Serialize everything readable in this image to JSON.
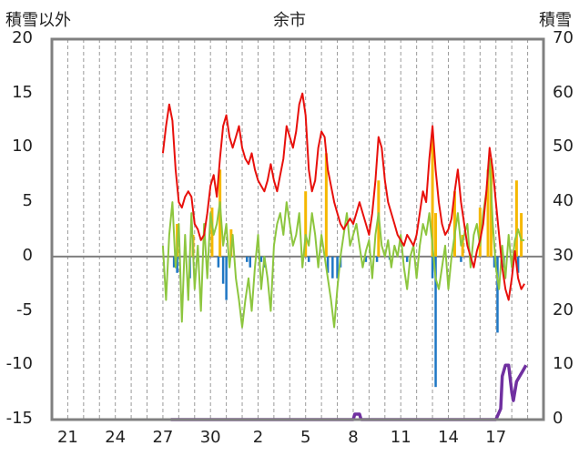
{
  "chart_data": {
    "type": "line",
    "title": "余市",
    "left_axis_label": "積雪以外",
    "right_axis_label": "積雪",
    "left_ylim": [
      -15,
      20
    ],
    "right_ylim": [
      0,
      70
    ],
    "left_ticks": [
      "20",
      "15",
      "10",
      "5",
      "0",
      "-5",
      "-10",
      "-15"
    ],
    "right_ticks": [
      "70",
      "60",
      "50",
      "40",
      "30",
      "20",
      "10",
      "0"
    ],
    "x_ticks": [
      "21",
      "24",
      "27",
      "30",
      "2",
      "5",
      "8",
      "11",
      "14",
      "17"
    ],
    "x_tick_day_index": [
      1,
      4,
      7,
      10,
      13,
      16,
      19,
      22,
      25,
      28
    ],
    "x_range_days": [
      0,
      31
    ],
    "grid": "vertical-dashed",
    "legend": "none",
    "colors": {
      "temperature": "#e8100c",
      "wind": "#f5b800",
      "precipitation": "#1f77c4",
      "humidity_change": "#8dc63f",
      "snow_depth": "#7030a0"
    },
    "series": [
      {
        "key": "temperature",
        "axis": "left",
        "points": [
          [
            7.0,
            9.5
          ],
          [
            7.2,
            12.0
          ],
          [
            7.4,
            14.0
          ],
          [
            7.6,
            12.5
          ],
          [
            7.8,
            8.0
          ],
          [
            8.0,
            5.0
          ],
          [
            8.2,
            4.5
          ],
          [
            8.4,
            5.5
          ],
          [
            8.6,
            6.0
          ],
          [
            8.8,
            5.5
          ],
          [
            9.0,
            3.0
          ],
          [
            9.2,
            2.5
          ],
          [
            9.4,
            1.5
          ],
          [
            9.6,
            2.0
          ],
          [
            9.8,
            4.0
          ],
          [
            10.0,
            6.5
          ],
          [
            10.2,
            7.5
          ],
          [
            10.4,
            5.5
          ],
          [
            10.6,
            9.0
          ],
          [
            10.8,
            12.0
          ],
          [
            11.0,
            13.0
          ],
          [
            11.2,
            11.0
          ],
          [
            11.4,
            10.0
          ],
          [
            11.6,
            11.0
          ],
          [
            11.8,
            12.0
          ],
          [
            12.0,
            10.0
          ],
          [
            12.2,
            9.0
          ],
          [
            12.4,
            8.5
          ],
          [
            12.6,
            9.5
          ],
          [
            12.8,
            8.0
          ],
          [
            13.0,
            7.0
          ],
          [
            13.2,
            6.5
          ],
          [
            13.4,
            6.0
          ],
          [
            13.6,
            7.0
          ],
          [
            13.8,
            8.5
          ],
          [
            14.0,
            7.0
          ],
          [
            14.2,
            6.0
          ],
          [
            14.4,
            7.5
          ],
          [
            14.6,
            9.0
          ],
          [
            14.8,
            12.0
          ],
          [
            15.0,
            11.0
          ],
          [
            15.2,
            10.0
          ],
          [
            15.4,
            11.5
          ],
          [
            15.6,
            14.0
          ],
          [
            15.8,
            15.0
          ],
          [
            16.0,
            13.0
          ],
          [
            16.2,
            8.0
          ],
          [
            16.4,
            6.0
          ],
          [
            16.6,
            7.0
          ],
          [
            16.8,
            10.0
          ],
          [
            17.0,
            11.5
          ],
          [
            17.2,
            11.0
          ],
          [
            17.4,
            8.0
          ],
          [
            17.6,
            6.5
          ],
          [
            17.8,
            5.0
          ],
          [
            18.0,
            4.0
          ],
          [
            18.2,
            3.0
          ],
          [
            18.4,
            2.5
          ],
          [
            18.6,
            3.0
          ],
          [
            18.8,
            3.5
          ],
          [
            19.0,
            3.0
          ],
          [
            19.2,
            4.0
          ],
          [
            19.4,
            5.0
          ],
          [
            19.6,
            4.0
          ],
          [
            19.8,
            3.0
          ],
          [
            20.0,
            2.0
          ],
          [
            20.2,
            4.0
          ],
          [
            20.4,
            7.0
          ],
          [
            20.6,
            11.0
          ],
          [
            20.8,
            10.0
          ],
          [
            21.0,
            7.0
          ],
          [
            21.2,
            5.0
          ],
          [
            21.4,
            4.0
          ],
          [
            21.6,
            3.0
          ],
          [
            21.8,
            2.0
          ],
          [
            22.0,
            1.5
          ],
          [
            22.2,
            1.0
          ],
          [
            22.4,
            2.0
          ],
          [
            22.6,
            1.5
          ],
          [
            22.8,
            1.0
          ],
          [
            23.0,
            2.0
          ],
          [
            23.2,
            4.0
          ],
          [
            23.4,
            6.0
          ],
          [
            23.6,
            5.0
          ],
          [
            23.8,
            9.0
          ],
          [
            24.0,
            12.0
          ],
          [
            24.2,
            8.0
          ],
          [
            24.4,
            5.0
          ],
          [
            24.6,
            3.0
          ],
          [
            24.8,
            2.0
          ],
          [
            25.0,
            2.5
          ],
          [
            25.2,
            3.5
          ],
          [
            25.4,
            6.0
          ],
          [
            25.6,
            8.0
          ],
          [
            25.8,
            5.0
          ],
          [
            26.0,
            3.0
          ],
          [
            26.2,
            1.0
          ],
          [
            26.4,
            0.0
          ],
          [
            26.6,
            -1.0
          ],
          [
            26.8,
            0.5
          ],
          [
            27.0,
            1.5
          ],
          [
            27.2,
            3.0
          ],
          [
            27.4,
            6.0
          ],
          [
            27.6,
            10.0
          ],
          [
            27.8,
            8.0
          ],
          [
            28.0,
            5.0
          ],
          [
            28.2,
            2.0
          ],
          [
            28.4,
            -1.0
          ],
          [
            28.6,
            -3.0
          ],
          [
            28.8,
            -4.0
          ],
          [
            29.0,
            -2.0
          ],
          [
            29.2,
            0.5
          ],
          [
            29.4,
            -2.0
          ],
          [
            29.6,
            -3.0
          ],
          [
            29.8,
            -2.5
          ]
        ]
      },
      {
        "key": "humidity_change",
        "axis": "left",
        "points": [
          [
            7.0,
            1.0
          ],
          [
            7.2,
            -4.0
          ],
          [
            7.4,
            2.0
          ],
          [
            7.6,
            5.0
          ],
          [
            7.8,
            -1.0
          ],
          [
            8.0,
            3.0
          ],
          [
            8.2,
            -6.0
          ],
          [
            8.4,
            2.0
          ],
          [
            8.6,
            -4.0
          ],
          [
            8.8,
            4.0
          ],
          [
            9.0,
            -3.0
          ],
          [
            9.2,
            1.0
          ],
          [
            9.4,
            -5.0
          ],
          [
            9.6,
            3.0
          ],
          [
            9.8,
            -2.0
          ],
          [
            10.0,
            4.0
          ],
          [
            10.2,
            2.0
          ],
          [
            10.4,
            3.0
          ],
          [
            10.6,
            5.0
          ],
          [
            10.8,
            1.0
          ],
          [
            11.0,
            3.0
          ],
          [
            11.2,
            -1.0
          ],
          [
            11.4,
            2.0
          ],
          [
            11.6,
            -2.0
          ],
          [
            11.8,
            -4.0
          ],
          [
            12.0,
            -6.5
          ],
          [
            12.2,
            -4.0
          ],
          [
            12.4,
            -2.0
          ],
          [
            12.6,
            -5.0
          ],
          [
            12.8,
            -1.0
          ],
          [
            13.0,
            2.0
          ],
          [
            13.2,
            -3.0
          ],
          [
            13.4,
            0.0
          ],
          [
            13.6,
            -2.0
          ],
          [
            13.8,
            -5.0
          ],
          [
            14.0,
            1.0
          ],
          [
            14.2,
            3.0
          ],
          [
            14.4,
            4.0
          ],
          [
            14.6,
            2.0
          ],
          [
            14.8,
            5.0
          ],
          [
            15.0,
            3.0
          ],
          [
            15.2,
            1.0
          ],
          [
            15.4,
            2.0
          ],
          [
            15.6,
            4.0
          ],
          [
            15.8,
            -1.0
          ],
          [
            16.0,
            2.0
          ],
          [
            16.2,
            1.0
          ],
          [
            16.4,
            4.0
          ],
          [
            16.6,
            2.0
          ],
          [
            16.8,
            -1.0
          ],
          [
            17.0,
            2.0
          ],
          [
            17.2,
            0.0
          ],
          [
            17.4,
            -2.0
          ],
          [
            17.6,
            -4.0
          ],
          [
            17.8,
            -6.5
          ],
          [
            18.0,
            -3.0
          ],
          [
            18.2,
            0.0
          ],
          [
            18.4,
            2.0
          ],
          [
            18.6,
            4.0
          ],
          [
            18.8,
            1.0
          ],
          [
            19.0,
            2.0
          ],
          [
            19.2,
            3.0
          ],
          [
            19.4,
            1.0
          ],
          [
            19.6,
            -1.0
          ],
          [
            19.8,
            0.5
          ],
          [
            20.0,
            1.5
          ],
          [
            20.2,
            -2.0
          ],
          [
            20.4,
            2.0
          ],
          [
            20.6,
            4.0
          ],
          [
            20.8,
            1.0
          ],
          [
            21.0,
            0.0
          ],
          [
            21.2,
            1.5
          ],
          [
            21.4,
            -1.0
          ],
          [
            21.6,
            1.0
          ],
          [
            21.8,
            0.0
          ],
          [
            22.0,
            2.0
          ],
          [
            22.2,
            -1.0
          ],
          [
            22.4,
            -3.0
          ],
          [
            22.6,
            0.0
          ],
          [
            22.8,
            1.0
          ],
          [
            23.0,
            -2.0
          ],
          [
            23.2,
            1.0
          ],
          [
            23.4,
            3.0
          ],
          [
            23.6,
            2.0
          ],
          [
            23.8,
            4.0
          ],
          [
            24.0,
            1.0
          ],
          [
            24.2,
            -2.0
          ],
          [
            24.4,
            -3.0
          ],
          [
            24.6,
            -1.0
          ],
          [
            24.8,
            1.0
          ],
          [
            25.0,
            -3.0
          ],
          [
            25.2,
            0.0
          ],
          [
            25.4,
            2.0
          ],
          [
            25.6,
            4.0
          ],
          [
            25.8,
            1.0
          ],
          [
            26.0,
            2.0
          ],
          [
            26.2,
            3.0
          ],
          [
            26.4,
            -1.0
          ],
          [
            26.6,
            2.0
          ],
          [
            26.8,
            3.0
          ],
          [
            27.0,
            1.0
          ],
          [
            27.2,
            4.0
          ],
          [
            27.4,
            6.0
          ],
          [
            27.6,
            9.0
          ],
          [
            27.8,
            3.0
          ],
          [
            28.0,
            -1.0
          ],
          [
            28.2,
            -3.0
          ],
          [
            28.4,
            1.0
          ],
          [
            28.6,
            -2.0
          ],
          [
            28.8,
            2.0
          ],
          [
            29.0,
            -1.0
          ],
          [
            29.2,
            1.5
          ],
          [
            29.4,
            2.5
          ],
          [
            29.6,
            1.5
          ],
          [
            29.8,
            1.5
          ]
        ]
      },
      {
        "key": "wind",
        "axis": "left",
        "bars": [
          [
            7.9,
            3.0
          ],
          [
            8.9,
            2.0
          ],
          [
            10.1,
            4.5
          ],
          [
            10.6,
            8.0
          ],
          [
            11.3,
            2.5
          ],
          [
            16.0,
            6.0
          ],
          [
            17.3,
            9.5
          ],
          [
            20.6,
            7.0
          ],
          [
            24.0,
            11.0
          ],
          [
            24.2,
            4.0
          ],
          [
            25.4,
            6.0
          ],
          [
            25.9,
            2.0
          ],
          [
            27.0,
            4.5
          ],
          [
            27.5,
            8.0
          ],
          [
            27.7,
            9.0
          ],
          [
            29.3,
            7.0
          ],
          [
            29.6,
            4.0
          ]
        ]
      },
      {
        "key": "precipitation",
        "axis": "left",
        "bars": [
          [
            7.7,
            -1.0
          ],
          [
            7.9,
            -1.5
          ],
          [
            8.7,
            -2.0
          ],
          [
            10.5,
            -1.0
          ],
          [
            10.8,
            -2.5
          ],
          [
            11.0,
            -4.0
          ],
          [
            12.3,
            -0.5
          ],
          [
            12.5,
            -1.0
          ],
          [
            13.2,
            -0.5
          ],
          [
            13.4,
            -1.0
          ],
          [
            16.2,
            -0.5
          ],
          [
            17.4,
            -1.5
          ],
          [
            17.7,
            -2.0
          ],
          [
            18.0,
            -2.0
          ],
          [
            18.2,
            -1.0
          ],
          [
            19.8,
            -0.5
          ],
          [
            20.5,
            -0.5
          ],
          [
            21.3,
            -0.3
          ],
          [
            22.4,
            -0.5
          ],
          [
            24.0,
            -2.0
          ],
          [
            24.2,
            -12.0
          ],
          [
            25.8,
            -0.5
          ],
          [
            27.9,
            -1.0
          ],
          [
            28.1,
            -7.0
          ],
          [
            28.5,
            -1.0
          ],
          [
            29.4,
            -1.5
          ]
        ]
      },
      {
        "key": "snow_depth",
        "axis": "right",
        "points": [
          [
            7.5,
            0.0
          ],
          [
            19.0,
            0.0
          ],
          [
            19.1,
            1.0
          ],
          [
            19.4,
            1.0
          ],
          [
            19.5,
            0.0
          ],
          [
            28.0,
            0.0
          ],
          [
            28.3,
            2.0
          ],
          [
            28.4,
            8.0
          ],
          [
            28.6,
            10.0
          ],
          [
            28.8,
            10.0
          ],
          [
            29.0,
            5.0
          ],
          [
            29.1,
            3.5
          ],
          [
            29.3,
            7.0
          ],
          [
            29.5,
            8.0
          ],
          [
            29.7,
            9.0
          ],
          [
            29.9,
            10.0
          ]
        ]
      }
    ]
  }
}
